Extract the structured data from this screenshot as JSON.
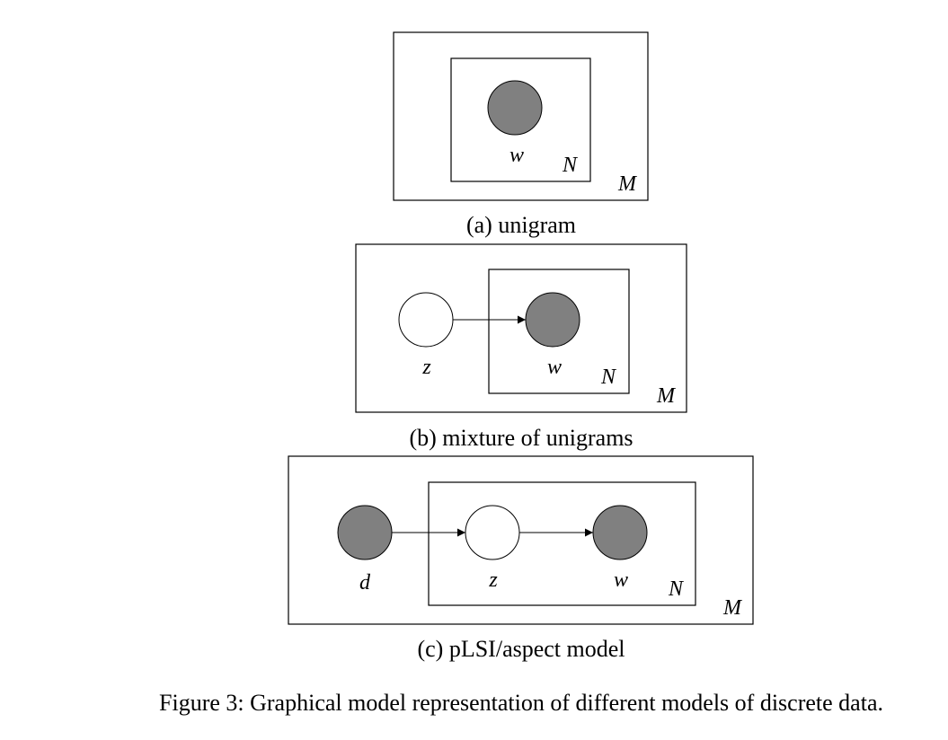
{
  "colors": {
    "observed": "#808080",
    "latent": "#ffffff",
    "stroke": "#000000"
  },
  "panels": [
    {
      "caption": "(a) unigram",
      "nodes": [
        {
          "id": "w",
          "label": "w",
          "observed": true
        }
      ],
      "edges": [],
      "plates": [
        {
          "label": "N",
          "contains": [
            "w"
          ]
        },
        {
          "label": "M",
          "contains": [
            "w"
          ]
        }
      ]
    },
    {
      "caption": "(b) mixture of unigrams",
      "nodes": [
        {
          "id": "z",
          "label": "z",
          "observed": false
        },
        {
          "id": "w",
          "label": "w",
          "observed": true
        }
      ],
      "edges": [
        {
          "from": "z",
          "to": "w"
        }
      ],
      "plates": [
        {
          "label": "N",
          "contains": [
            "w"
          ]
        },
        {
          "label": "M",
          "contains": [
            "z",
            "w"
          ]
        }
      ]
    },
    {
      "caption": "(c) pLSI/aspect model",
      "nodes": [
        {
          "id": "d",
          "label": "d",
          "observed": true
        },
        {
          "id": "z",
          "label": "z",
          "observed": false
        },
        {
          "id": "w",
          "label": "w",
          "observed": true
        }
      ],
      "edges": [
        {
          "from": "d",
          "to": "z"
        },
        {
          "from": "z",
          "to": "w"
        }
      ],
      "plates": [
        {
          "label": "N",
          "contains": [
            "z",
            "w"
          ]
        },
        {
          "label": "M",
          "contains": [
            "d",
            "z",
            "w"
          ]
        }
      ]
    }
  ],
  "figure_caption": "Figure 3: Graphical model representation of different models of discrete data."
}
